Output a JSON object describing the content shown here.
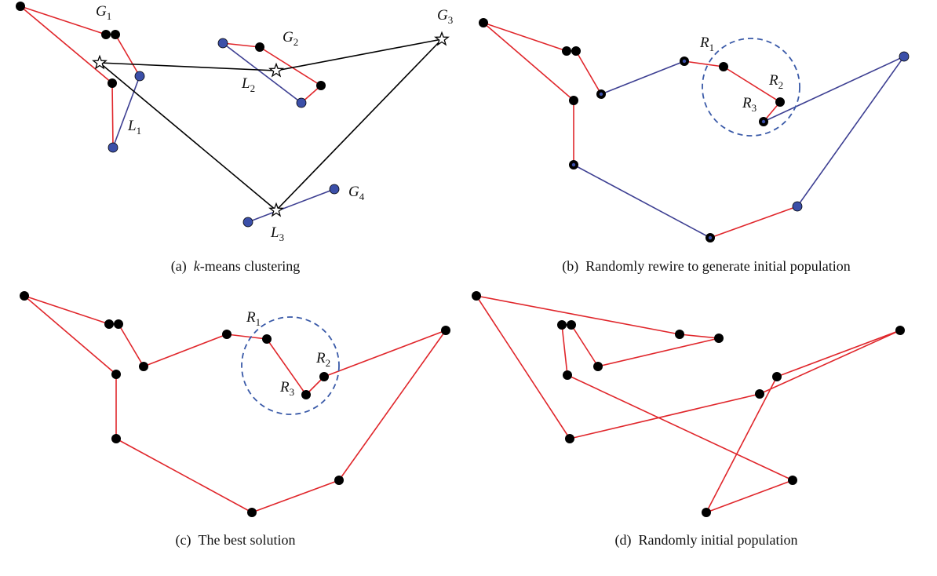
{
  "panels": [
    {
      "caption": {
        "tag": "(a)",
        "italic": "k",
        "text": "-means clustering"
      },
      "labels": [
        {
          "name": "G",
          "sub": "1"
        },
        {
          "name": "G",
          "sub": "2"
        },
        {
          "name": "G",
          "sub": "3"
        },
        {
          "name": "G",
          "sub": "4"
        },
        {
          "name": "L",
          "sub": "1"
        },
        {
          "name": "L",
          "sub": "2"
        },
        {
          "name": "L",
          "sub": "3"
        }
      ]
    },
    {
      "caption": {
        "tag": "(b)",
        "text": "Randomly rewire to generate initial population"
      },
      "labels": [
        {
          "name": "R",
          "sub": "1"
        },
        {
          "name": "R",
          "sub": "2"
        },
        {
          "name": "R",
          "sub": "3"
        }
      ]
    },
    {
      "caption": {
        "tag": "(c)",
        "text": "The best solution"
      },
      "labels": [
        {
          "name": "R",
          "sub": "1"
        },
        {
          "name": "R",
          "sub": "2"
        },
        {
          "name": "R",
          "sub": "3"
        }
      ]
    },
    {
      "caption": {
        "tag": "(d)",
        "text": "Randomly initial population"
      },
      "labels": []
    }
  ]
}
